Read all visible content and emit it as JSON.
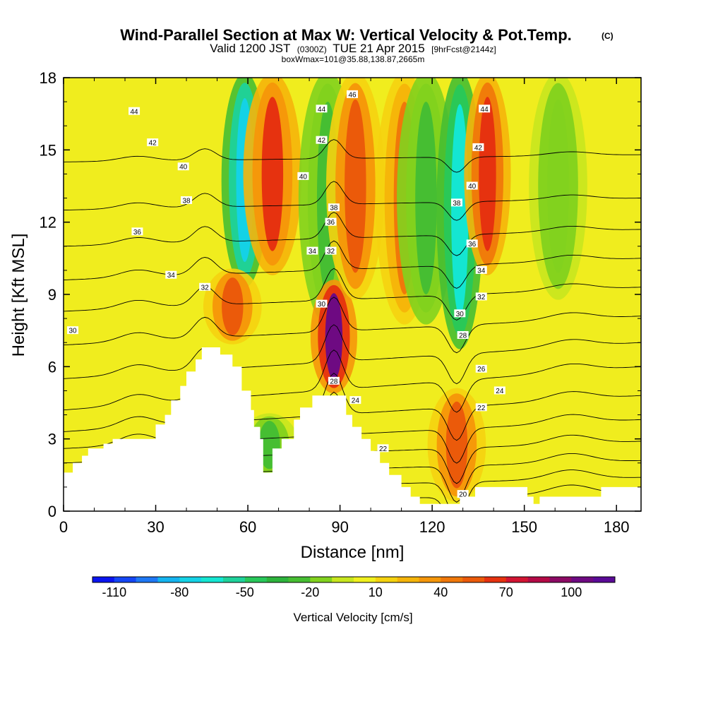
{
  "chart_data": {
    "type": "heatmap",
    "title": "Wind-Parallel Section at Max W: Vertical Velocity & Pot.Temp.",
    "copyright": "(C)",
    "subtitle": {
      "prefix": "Valid 1200 JST",
      "utc": "(0300Z)",
      "date": "TUE 21 Apr 2015",
      "forecast": "[9hrFcst@2144z]"
    },
    "box_info": "boxWmax=101@35.88,138.87,2665m",
    "xlabel": "Distance [nm]",
    "ylabel": "Height [Kft MSL]",
    "xlim": [
      0,
      188
    ],
    "ylim": [
      0,
      18
    ],
    "x_ticks": [
      "0",
      "30",
      "60",
      "90",
      "120",
      "150",
      "180"
    ],
    "y_ticks": [
      "0",
      "3",
      "6",
      "9",
      "12",
      "15",
      "18"
    ],
    "colorbar": {
      "label": "Vertical Velocity [cm/s]",
      "tick_labels": [
        "-110",
        "-80",
        "-50",
        "-20",
        "10",
        "40",
        "70",
        "100"
      ],
      "colors": [
        "#0a14f0",
        "#1446f5",
        "#1e78f5",
        "#14b4f0",
        "#14d2e6",
        "#14e6d2",
        "#1ed29b",
        "#28c85a",
        "#2db43c",
        "#46be32",
        "#82d21e",
        "#c8e61e",
        "#f0f01e",
        "#f5d20f",
        "#f5b40a",
        "#f5960a",
        "#f0780a",
        "#eb5a0a",
        "#e6320f",
        "#d21432",
        "#b40a46",
        "#8c0a64",
        "#6e0a82",
        "#5a0a96"
      ]
    },
    "velocity_features_cm_s": [
      {
        "center_x_nm": 59,
        "height_kft": [
          9.5,
          18
        ],
        "w": -80
      },
      {
        "center_x_nm": 55,
        "height_kft": [
          7,
          10
        ],
        "w": 55
      },
      {
        "center_x_nm": 68,
        "height_kft": [
          10,
          18
        ],
        "w": 60
      },
      {
        "center_x_nm": 86,
        "height_kft": [
          8,
          18
        ],
        "w": -30
      },
      {
        "center_x_nm": 88,
        "height_kft": [
          5,
          9.5
        ],
        "w": 101
      },
      {
        "center_x_nm": 95,
        "height_kft": [
          9,
          18
        ],
        "w": 50
      },
      {
        "center_x_nm": 111,
        "height_kft": [
          8,
          18
        ],
        "w": 45
      },
      {
        "center_x_nm": 118,
        "height_kft": [
          8,
          18
        ],
        "w": -30
      },
      {
        "center_x_nm": 129,
        "height_kft": [
          7,
          18
        ],
        "w": -70
      },
      {
        "center_x_nm": 138,
        "height_kft": [
          10,
          18
        ],
        "w": 65
      },
      {
        "center_x_nm": 128,
        "height_kft": [
          0.5,
          5
        ],
        "w": 55
      },
      {
        "center_x_nm": 161,
        "height_kft": [
          9,
          18
        ],
        "w": -20
      },
      {
        "center_x_nm": 67,
        "height_kft": [
          1.5,
          4
        ],
        "w": -25
      }
    ],
    "terrain_profile": [
      [
        0,
        1.6
      ],
      [
        3,
        1.6
      ],
      [
        3,
        2
      ],
      [
        6,
        2
      ],
      [
        6,
        2.3
      ],
      [
        8,
        2.3
      ],
      [
        8,
        2.6
      ],
      [
        13,
        2.6
      ],
      [
        13,
        2.8
      ],
      [
        16,
        2.8
      ],
      [
        16,
        3
      ],
      [
        30,
        3
      ],
      [
        30,
        3.6
      ],
      [
        33,
        3.6
      ],
      [
        33,
        4
      ],
      [
        35,
        4
      ],
      [
        35,
        4.6
      ],
      [
        38,
        4.6
      ],
      [
        38,
        5.2
      ],
      [
        40,
        5.2
      ],
      [
        40,
        5.8
      ],
      [
        43,
        5.8
      ],
      [
        43,
        6.3
      ],
      [
        45,
        6.3
      ],
      [
        45,
        6.8
      ],
      [
        51,
        6.8
      ],
      [
        51,
        6.5
      ],
      [
        55,
        6.5
      ],
      [
        55,
        6
      ],
      [
        58,
        6
      ],
      [
        58,
        5
      ],
      [
        61,
        5
      ],
      [
        61,
        4.2
      ],
      [
        62,
        4.2
      ],
      [
        62,
        3.5
      ],
      [
        64,
        3.5
      ],
      [
        64,
        3
      ],
      [
        65,
        3
      ],
      [
        65,
        1.6
      ],
      [
        68,
        1.6
      ],
      [
        68,
        2.6
      ],
      [
        71,
        2.6
      ],
      [
        71,
        3
      ],
      [
        75,
        3
      ],
      [
        75,
        3.8
      ],
      [
        77,
        3.8
      ],
      [
        77,
        4.3
      ],
      [
        81,
        4.3
      ],
      [
        81,
        4.8
      ],
      [
        92,
        4.8
      ],
      [
        92,
        4
      ],
      [
        94,
        4
      ],
      [
        94,
        3.5
      ],
      [
        97,
        3.5
      ],
      [
        97,
        3
      ],
      [
        100,
        3
      ],
      [
        100,
        2.5
      ],
      [
        103,
        2.5
      ],
      [
        103,
        2
      ],
      [
        106,
        2
      ],
      [
        106,
        1.5
      ],
      [
        110,
        1.5
      ],
      [
        110,
        1
      ],
      [
        113,
        1
      ],
      [
        113,
        0.6
      ],
      [
        116,
        0.6
      ],
      [
        116,
        0.3
      ],
      [
        129,
        0.3
      ],
      [
        129,
        0.6
      ],
      [
        134,
        0.6
      ],
      [
        134,
        1
      ],
      [
        151,
        1
      ],
      [
        151,
        0.6
      ],
      [
        153,
        0.6
      ],
      [
        153,
        0.3
      ],
      [
        155,
        0.3
      ],
      [
        155,
        0.6
      ],
      [
        175,
        0.6
      ],
      [
        175,
        1
      ],
      [
        188,
        1
      ]
    ],
    "theta_contours_K": [
      {
        "value": 20,
        "y0": 0.25,
        "up": 0.5
      },
      {
        "value": 22,
        "y0": 0.8,
        "up": 0.6
      },
      {
        "value": 24,
        "y0": 1.4,
        "up": 0.7
      },
      {
        "value": 26,
        "y0": 2.0,
        "up": 0.9
      },
      {
        "value": 28,
        "y0": 2.6,
        "up": 1.2
      },
      {
        "value": 30,
        "y0": 3.3,
        "up": 1.5
      },
      {
        "value": 32,
        "y0": 4.2,
        "up": 1.8
      },
      {
        "value": 34,
        "y0": 5.5,
        "up": 1.5
      },
      {
        "value": 36,
        "y0": 6.9,
        "up": 1.2
      },
      {
        "value": 38,
        "y0": 8.3,
        "up": 1.0
      },
      {
        "value": 40,
        "y0": 9.6,
        "up": 0.9
      },
      {
        "value": 42,
        "y0": 11.0,
        "up": 0.7
      },
      {
        "value": 44,
        "y0": 12.5,
        "up": 0.5
      },
      {
        "value": 46,
        "y0": 14.5,
        "up": 0.3
      }
    ],
    "contour_labels": [
      {
        "text": "44",
        "x": 23,
        "y": 16.6
      },
      {
        "text": "42",
        "x": 29,
        "y": 15.3
      },
      {
        "text": "40",
        "x": 39,
        "y": 14.3
      },
      {
        "text": "38",
        "x": 40,
        "y": 12.9
      },
      {
        "text": "36",
        "x": 24,
        "y": 11.6
      },
      {
        "text": "34",
        "x": 35,
        "y": 9.8
      },
      {
        "text": "32",
        "x": 46,
        "y": 9.3
      },
      {
        "text": "30",
        "x": 3,
        "y": 7.5
      },
      {
        "text": "46",
        "x": 94,
        "y": 17.3
      },
      {
        "text": "44",
        "x": 84,
        "y": 16.7
      },
      {
        "text": "42",
        "x": 84,
        "y": 15.4
      },
      {
        "text": "40",
        "x": 78,
        "y": 13.9
      },
      {
        "text": "38",
        "x": 88,
        "y": 12.6
      },
      {
        "text": "36",
        "x": 87,
        "y": 12.0
      },
      {
        "text": "34",
        "x": 81,
        "y": 10.8
      },
      {
        "text": "32",
        "x": 87,
        "y": 10.8
      },
      {
        "text": "30",
        "x": 84,
        "y": 8.6
      },
      {
        "text": "28",
        "x": 88,
        "y": 5.4
      },
      {
        "text": "24",
        "x": 95,
        "y": 4.6
      },
      {
        "text": "22",
        "x": 104,
        "y": 2.6
      },
      {
        "text": "20",
        "x": 130,
        "y": 0.7
      },
      {
        "text": "44",
        "x": 137,
        "y": 16.7
      },
      {
        "text": "42",
        "x": 135,
        "y": 15.1
      },
      {
        "text": "40",
        "x": 133,
        "y": 13.5
      },
      {
        "text": "38",
        "x": 128,
        "y": 12.8
      },
      {
        "text": "36",
        "x": 133,
        "y": 11.1
      },
      {
        "text": "34",
        "x": 136,
        "y": 10.0
      },
      {
        "text": "32",
        "x": 136,
        "y": 8.9
      },
      {
        "text": "30",
        "x": 129,
        "y": 8.2
      },
      {
        "text": "28",
        "x": 130,
        "y": 7.3
      },
      {
        "text": "26",
        "x": 136,
        "y": 5.9
      },
      {
        "text": "24",
        "x": 142,
        "y": 5.0
      },
      {
        "text": "22",
        "x": 136,
        "y": 4.3
      }
    ]
  }
}
